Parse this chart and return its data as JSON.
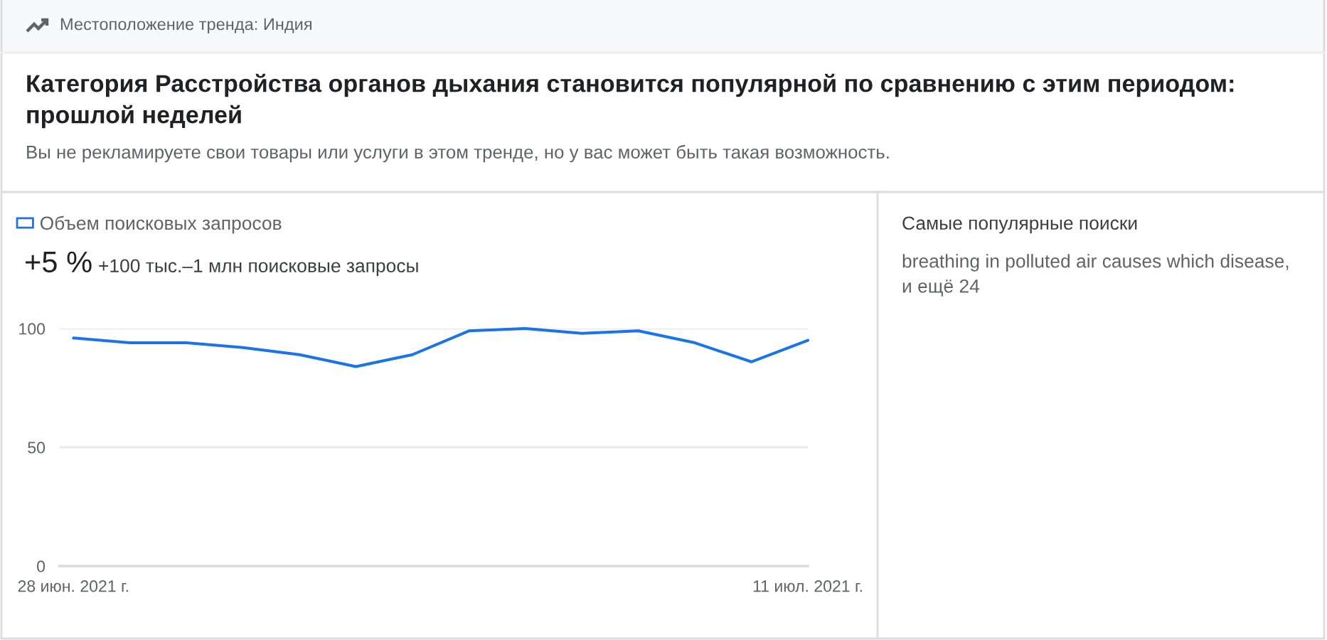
{
  "chart_data": {
    "type": "line",
    "title": "Категория Расстройства органов дыхания становится популярной по сравнению с этим периодом: прошлой неделей",
    "subtitle": "Вы не рекламируете свои товары или услуги в этом тренде, но у вас может быть такая возможность.",
    "x": [
      "2021-06-28",
      "2021-06-29",
      "2021-06-30",
      "2021-07-01",
      "2021-07-02",
      "2021-07-03",
      "2021-07-04",
      "2021-07-05",
      "2021-07-06",
      "2021-07-07",
      "2021-07-08",
      "2021-07-09",
      "2021-07-10",
      "2021-07-11"
    ],
    "series": [
      {
        "name": "Объем поисковых запросов",
        "color": "#1a73e8",
        "values": [
          96,
          94,
          94,
          92,
          89,
          84,
          89,
          99,
          100,
          98,
          99,
          94,
          86,
          95
        ]
      }
    ],
    "xlim": [
      "2021-06-27T18:00",
      "2021-07-11"
    ],
    "xticks": [
      {
        "value": "2021-06-28",
        "label": "28 июн. 2021 г."
      },
      {
        "value": "2021-07-11",
        "label": "11 июл. 2021 г."
      }
    ],
    "ylim": [
      0,
      100
    ],
    "yticks": [
      0,
      50,
      100
    ],
    "grid": "y",
    "legend": "top left",
    "annotations": [
      "Местоположение тренда: Индия",
      "+5 %",
      "+100 тыс.–1 млн поисковые запросы",
      "Самые популярные поиски",
      "breathing in polluted air causes which disease,\nи ещё 24"
    ]
  }
}
